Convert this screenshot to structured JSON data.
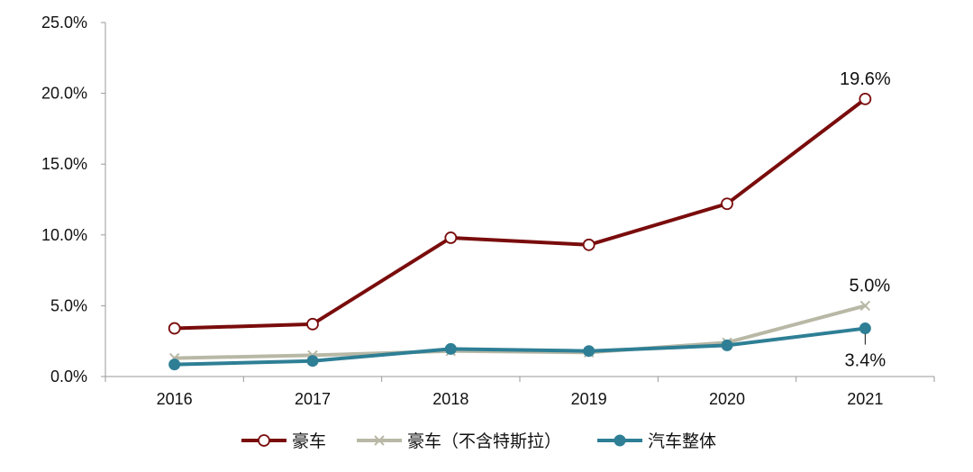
{
  "chart_data": {
    "type": "line",
    "categories": [
      "2016",
      "2017",
      "2018",
      "2019",
      "2020",
      "2021"
    ],
    "ylim": [
      0,
      25
    ],
    "yticks": [
      0,
      5,
      10,
      15,
      20,
      25
    ],
    "ytick_labels": [
      "0.0%",
      "5.0%",
      "10.0%",
      "15.0%",
      "20.0%",
      "25.0%"
    ],
    "grid": false,
    "legend_position": "bottom",
    "series": [
      {
        "name": "豪车",
        "values": [
          3.4,
          3.7,
          9.8,
          9.3,
          12.2,
          19.6
        ],
        "color": "#7a0c0c",
        "marker": "open-circle"
      },
      {
        "name": "豪车（不含特斯拉）",
        "values": [
          1.3,
          1.5,
          1.8,
          1.7,
          2.4,
          5.0
        ],
        "color": "#b8b8a6",
        "marker": "x"
      },
      {
        "name": "汽车整体",
        "values": [
          0.85,
          1.1,
          1.95,
          1.8,
          2.2,
          3.4
        ],
        "color": "#2e7f95",
        "marker": "filled-circle"
      }
    ],
    "annotations": [
      {
        "series": 0,
        "index": 5,
        "text": "19.6%"
      },
      {
        "series": 1,
        "index": 5,
        "text": "5.0%"
      },
      {
        "series": 2,
        "index": 5,
        "text": "3.4%"
      }
    ]
  }
}
